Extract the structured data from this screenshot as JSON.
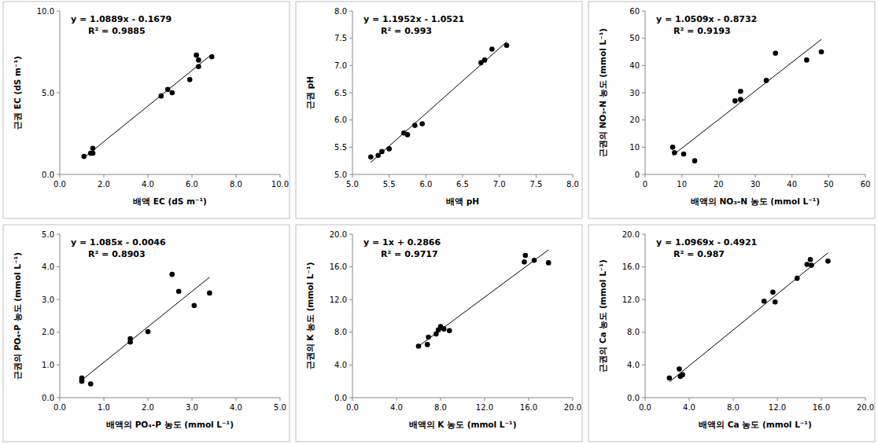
{
  "chart_data": [
    {
      "type": "scatter",
      "x_label": "배액 EC (dS m⁻¹)",
      "y_label": "근권 EC (dS m⁻¹)",
      "color": "#000000",
      "marker": "circle",
      "x": [
        1.1,
        1.4,
        1.5,
        1.5,
        4.6,
        4.9,
        5.1,
        5.9,
        6.2,
        6.3,
        6.3,
        6.9
      ],
      "values": [
        1.1,
        1.3,
        1.6,
        1.3,
        4.8,
        5.2,
        5.0,
        5.8,
        7.3,
        7.0,
        6.6,
        7.2
      ],
      "xlim": [
        0,
        10
      ],
      "ylim": [
        0,
        10
      ],
      "xticks": [
        {
          "value": 0,
          "label": "0.0"
        },
        {
          "value": 2,
          "label": "2.0"
        },
        {
          "value": 4,
          "label": "4.0"
        },
        {
          "value": 6,
          "label": "6.0"
        },
        {
          "value": 8,
          "label": "8.0"
        },
        {
          "value": 10,
          "label": "10.0"
        }
      ],
      "yticks": [
        {
          "value": 0,
          "label": "0.0"
        },
        {
          "value": 5,
          "label": "5.0"
        },
        {
          "value": 10,
          "label": "10.0"
        }
      ],
      "grid": false,
      "trendline": {
        "slope": 1.0889,
        "intercept": -0.1679,
        "label": "y = 1.0889x - 0.1679",
        "r2_label": "R² = 0.9885"
      }
    },
    {
      "type": "scatter",
      "x_label": "배액 pH",
      "y_label": "근권 pH",
      "color": "#000000",
      "marker": "circle",
      "x": [
        5.25,
        5.35,
        5.4,
        5.5,
        5.7,
        5.75,
        5.85,
        5.95,
        6.75,
        6.8,
        6.9,
        7.1
      ],
      "values": [
        5.32,
        5.35,
        5.42,
        5.47,
        5.76,
        5.73,
        5.9,
        5.93,
        7.05,
        7.1,
        7.3,
        7.37
      ],
      "xlim": [
        5,
        8
      ],
      "ylim": [
        5,
        8
      ],
      "xticks": [
        {
          "value": 5,
          "label": "5.0"
        },
        5.5,
        {
          "value": 6,
          "label": "6.0"
        },
        6.5,
        {
          "value": 7,
          "label": "7.0"
        },
        7.5,
        {
          "value": 8,
          "label": "8.0"
        }
      ],
      "yticks": [
        {
          "value": 5,
          "label": "5.0"
        },
        5.5,
        {
          "value": 6,
          "label": "6.0"
        },
        6.5,
        {
          "value": 7,
          "label": "7.0"
        },
        7.5,
        {
          "value": 8,
          "label": "8.0"
        }
      ],
      "grid": false,
      "trendline": {
        "slope": 1.1952,
        "intercept": -1.0521,
        "label": "y = 1.1952x - 1.0521",
        "r2_label": "R² = 0.993"
      }
    },
    {
      "type": "scatter",
      "x_label": "배액의 NO₃-N 농도 (mmol L⁻¹)",
      "y_label": "근권의 NO₃-N 농도 (mmol L⁻¹)",
      "color": "#000000",
      "marker": "circle",
      "x": [
        7.5,
        8,
        10.5,
        13.5,
        24.5,
        26,
        26,
        33,
        35.5,
        44,
        48
      ],
      "values": [
        10,
        8,
        7.5,
        5,
        27,
        27.5,
        30.5,
        34.5,
        44.5,
        42,
        45
      ],
      "xlim": [
        0,
        60
      ],
      "ylim": [
        0,
        60
      ],
      "xticks": [
        0,
        10,
        20,
        30,
        40,
        50,
        60
      ],
      "yticks": [
        0,
        10,
        20,
        30,
        40,
        50,
        60
      ],
      "grid": false,
      "trendline": {
        "slope": 1.0509,
        "intercept": -0.8732,
        "label": "y = 1.0509x - 0.8732",
        "r2_label": "R² = 0.9193"
      }
    },
    {
      "type": "scatter",
      "x_label": "배액의 PO₄-P 농도 (mmol L⁻¹)",
      "y_label": "근권의 PO₄-P 농도 (mmol L⁻¹)",
      "color": "#000000",
      "marker": "circle",
      "x": [
        0.5,
        0.5,
        0.5,
        0.7,
        1.6,
        1.6,
        2.0,
        2.55,
        2.7,
        3.05,
        3.4
      ],
      "values": [
        0.6,
        0.55,
        0.5,
        0.42,
        1.8,
        1.7,
        2.02,
        3.77,
        3.25,
        2.82,
        3.2
      ],
      "xlim": [
        0,
        5
      ],
      "ylim": [
        0,
        5
      ],
      "xticks": [
        {
          "value": 0,
          "label": "0.0"
        },
        {
          "value": 1,
          "label": "1.0"
        },
        {
          "value": 2,
          "label": "2.0"
        },
        {
          "value": 3,
          "label": "3.0"
        },
        {
          "value": 4,
          "label": "4.0"
        },
        {
          "value": 5,
          "label": "5.0"
        }
      ],
      "yticks": [
        {
          "value": 0,
          "label": "0.0"
        },
        {
          "value": 1,
          "label": "1.0"
        },
        {
          "value": 2,
          "label": "2.0"
        },
        {
          "value": 3,
          "label": "3.0"
        },
        {
          "value": 4,
          "label": "4.0"
        },
        {
          "value": 5,
          "label": "5.0"
        }
      ],
      "grid": false,
      "trendline": {
        "slope": 1.085,
        "intercept": -0.0046,
        "label": "y = 1.085x - 0.0046",
        "r2_label": "R² = 0.8903"
      }
    },
    {
      "type": "scatter",
      "x_label": "배액의 K 농도 (mmol L⁻¹)",
      "y_label": "근권의 K 농도 (mmol L⁻¹)",
      "color": "#000000",
      "marker": "circle",
      "x": [
        6,
        6.8,
        6.9,
        7.6,
        7.8,
        8.0,
        8.3,
        8.8,
        15.7,
        15.6,
        16.5,
        17.8
      ],
      "values": [
        6.3,
        6.5,
        7.4,
        7.8,
        8.3,
        8.7,
        8.4,
        8.2,
        17.4,
        16.6,
        16.8,
        16.5
      ],
      "xlim": [
        0,
        20
      ],
      "ylim": [
        0,
        20
      ],
      "xticks": [
        {
          "value": 0,
          "label": "0.0"
        },
        {
          "value": 4,
          "label": "4.0"
        },
        {
          "value": 8,
          "label": "8.0"
        },
        {
          "value": 12,
          "label": "12.0"
        },
        {
          "value": 16,
          "label": "16.0"
        },
        {
          "value": 20,
          "label": "20.0"
        }
      ],
      "yticks": [
        {
          "value": 0,
          "label": "0.0"
        },
        {
          "value": 4,
          "label": "4.0"
        },
        {
          "value": 8,
          "label": "8.0"
        },
        {
          "value": 12,
          "label": "12.0"
        },
        {
          "value": 16,
          "label": "16.0"
        },
        {
          "value": 20,
          "label": "20.0"
        }
      ],
      "grid": false,
      "trendline": {
        "slope": 1,
        "intercept": 0.2866,
        "label": "y = 1x + 0.2866",
        "r2_label": "R² = 0.9717"
      }
    },
    {
      "type": "scatter",
      "x_label": "배액의 Ca 농도 (mmol L⁻¹)",
      "y_label": "근권의 Ca 농도 (mmol L⁻¹)",
      "color": "#000000",
      "marker": "circle",
      "x": [
        2.2,
        3.1,
        3.2,
        3.4,
        10.8,
        11.6,
        11.8,
        13.8,
        14.7,
        15.0,
        15.1,
        16.6
      ],
      "values": [
        2.4,
        3.5,
        2.6,
        2.8,
        11.8,
        12.9,
        11.7,
        14.6,
        16.3,
        16.9,
        16.2,
        16.7
      ],
      "xlim": [
        0,
        20
      ],
      "ylim": [
        0,
        20
      ],
      "xticks": [
        {
          "value": 0,
          "label": "0.0"
        },
        {
          "value": 4,
          "label": "4.0"
        },
        {
          "value": 8,
          "label": "8.0"
        },
        {
          "value": 12,
          "label": "12.0"
        },
        {
          "value": 16,
          "label": "16.0"
        },
        {
          "value": 20,
          "label": "20.0"
        }
      ],
      "yticks": [
        {
          "value": 0,
          "label": "0.0"
        },
        {
          "value": 4,
          "label": "4.0"
        },
        {
          "value": 8,
          "label": "8.0"
        },
        {
          "value": 12,
          "label": "12.0"
        },
        {
          "value": 16,
          "label": "16.0"
        },
        {
          "value": 20,
          "label": "20.0"
        }
      ],
      "grid": false,
      "trendline": {
        "slope": 1.0969,
        "intercept": -0.4921,
        "label": "y = 1.0969x - 0.4921",
        "r2_label": "R² = 0.987"
      }
    }
  ]
}
